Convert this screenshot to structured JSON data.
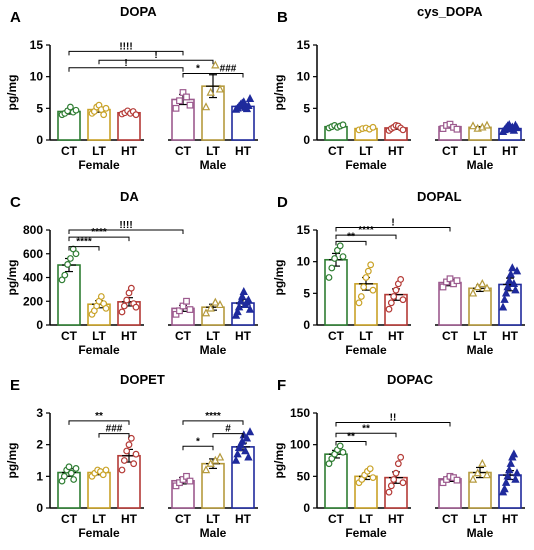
{
  "colors": {
    "CT": "#2e7d32",
    "LT": "#c9a227",
    "HT": "#b43a36",
    "CT_m": "#9c5a8e",
    "LT_m": "#b59a3d",
    "HT_m": "#1f2a9c"
  },
  "chart_data": [
    {
      "type": "bar",
      "letter": "A",
      "title": "DOPA",
      "ylabel": "pg/mg",
      "yticks": [
        "0",
        "5",
        "10",
        "15"
      ],
      "ylim": [
        0,
        15
      ],
      "groups": [
        "Female",
        "Male"
      ],
      "categories": [
        "CT",
        "LT",
        "HT"
      ],
      "means": [
        [
          4.5,
          4.8,
          4.3
        ],
        [
          6.4,
          8.5,
          5.3
        ]
      ],
      "errors": [
        [
          0.4,
          0.4,
          0.2
        ],
        [
          0.8,
          1.8,
          0.3
        ]
      ],
      "points": [
        [
          [
            4.0,
            4.2,
            4.6,
            5.2,
            4.4,
            4.7
          ],
          [
            4.2,
            4.5,
            5.2,
            5.5,
            4.8,
            4.0,
            5.0
          ],
          [
            4.1,
            4.3,
            4.6,
            4.2,
            4.5,
            4.0
          ]
        ],
        [
          [
            5.0,
            6.2,
            7.5,
            6.8,
            5.5
          ],
          [
            5.2,
            7.5,
            11.8,
            8.0
          ],
          [
            4.8,
            5.0,
            5.3,
            5.6,
            5.8,
            6.0,
            5.1,
            4.9,
            5.4,
            6.5
          ]
        ]
      ],
      "sig": [
        {
          "label": "!!!!",
          "from": [
            0,
            0
          ],
          "to": [
            1,
            0
          ],
          "level": 14.0
        },
        {
          "label": "!",
          "from": [
            0,
            0
          ],
          "to": [
            1,
            0
          ],
          "level": 11.4
        },
        {
          "label": "!",
          "from": [
            0,
            1
          ],
          "to": [
            1,
            1
          ],
          "level": 12.6
        },
        {
          "label": "*",
          "from": [
            1,
            0
          ],
          "to": [
            1,
            1
          ],
          "level": 10.5
        },
        {
          "label": "###",
          "from": [
            1,
            1
          ],
          "to": [
            1,
            2
          ],
          "level": 10.5
        }
      ]
    },
    {
      "type": "bar",
      "letter": "B",
      "title": "cys_DOPA",
      "ylabel": "pg/mg",
      "yticks": [
        "0",
        "5",
        "10",
        "15"
      ],
      "ylim": [
        0,
        15
      ],
      "groups": [
        "Female",
        "Male"
      ],
      "categories": [
        "CT",
        "LT",
        "HT"
      ],
      "means": [
        [
          2.1,
          1.8,
          1.9
        ],
        [
          2.1,
          2.0,
          1.8
        ]
      ],
      "errors": [
        [
          0.1,
          0.1,
          0.2
        ],
        [
          0.2,
          0.1,
          0.2
        ]
      ],
      "points": [
        [
          [
            1.9,
            2.1,
            2.3,
            2.0,
            2.2,
            2.4
          ],
          [
            1.6,
            1.8,
            1.9,
            1.7,
            2.0
          ],
          [
            1.5,
            1.8,
            2.0,
            2.3,
            2.2,
            1.9,
            1.6
          ]
        ],
        [
          [
            1.8,
            2.3,
            2.5,
            2.0,
            1.7
          ],
          [
            2.2,
            1.8,
            2.0,
            2.3
          ],
          [
            1.3,
            1.6,
            1.9,
            2.2,
            2.4,
            1.7,
            2.0,
            1.5,
            2.3,
            1.9
          ]
        ]
      ],
      "sig": []
    },
    {
      "type": "bar",
      "letter": "C",
      "title": "DA",
      "ylabel": "pg/mg",
      "yticks": [
        "0",
        "200",
        "400",
        "600",
        "800"
      ],
      "ylim": [
        0,
        800
      ],
      "groups": [
        "Female",
        "Male"
      ],
      "categories": [
        "CT",
        "LT",
        "HT"
      ],
      "means": [
        [
          505,
          175,
          195
        ],
        [
          140,
          150,
          185
        ]
      ],
      "errors": [
        [
          55,
          30,
          35
        ],
        [
          25,
          25,
          30
        ]
      ],
      "points": [
        [
          [
            380,
            420,
            510,
            560,
            640,
            600
          ],
          [
            90,
            120,
            160,
            200,
            240,
            180,
            140
          ],
          [
            110,
            160,
            210,
            270,
            310,
            180,
            150
          ]
        ],
        [
          [
            90,
            120,
            160,
            200,
            130
          ],
          [
            100,
            140,
            190,
            170
          ],
          [
            80,
            110,
            150,
            200,
            240,
            280,
            170,
            190,
            210,
            130
          ]
        ]
      ],
      "sig": [
        {
          "label": "****",
          "from": [
            0,
            0
          ],
          "to": [
            0,
            1
          ],
          "level": 660
        },
        {
          "label": "****",
          "from": [
            0,
            0
          ],
          "to": [
            0,
            2
          ],
          "level": 740
        },
        {
          "label": "!!!!",
          "from": [
            0,
            0
          ],
          "to": [
            1,
            0
          ],
          "level": 800
        }
      ]
    },
    {
      "type": "bar",
      "letter": "D",
      "title": "DOPAL",
      "ylabel": "pg/mg",
      "yticks": [
        "0",
        "5",
        "10",
        "15"
      ],
      "ylim": [
        0,
        15
      ],
      "groups": [
        "Female",
        "Male"
      ],
      "categories": [
        "CT",
        "LT",
        "HT"
      ],
      "means": [
        [
          10.3,
          6.5,
          4.8
        ],
        [
          6.7,
          5.8,
          6.4
        ]
      ],
      "errors": [
        [
          1.0,
          1.0,
          0.9
        ],
        [
          0.5,
          0.5,
          1.0
        ]
      ],
      "points": [
        [
          [
            7.5,
            9.0,
            10.5,
            11.8,
            12.5,
            10.8
          ],
          [
            3.5,
            4.5,
            6.0,
            7.5,
            8.5,
            9.5,
            5.5
          ],
          [
            2.5,
            3.5,
            4.5,
            5.5,
            6.5,
            7.2,
            4.0
          ]
        ],
        [
          [
            6.0,
            6.8,
            7.3,
            6.5,
            7.0
          ],
          [
            5.0,
            6.0,
            6.5,
            5.8
          ],
          [
            2.8,
            4.0,
            5.0,
            6.0,
            7.0,
            8.0,
            9.0,
            6.5,
            5.5,
            8.5
          ]
        ]
      ],
      "sig": [
        {
          "label": "**",
          "from": [
            0,
            0
          ],
          "to": [
            0,
            1
          ],
          "level": 13.2
        },
        {
          "label": "****",
          "from": [
            0,
            0
          ],
          "to": [
            0,
            2
          ],
          "level": 14.2
        },
        {
          "label": "!",
          "from": [
            0,
            0
          ],
          "to": [
            1,
            0
          ],
          "level": 15.4
        }
      ]
    },
    {
      "type": "bar",
      "letter": "E",
      "title": "DOPET",
      "ylabel": "pg/mg",
      "yticks": [
        "0",
        "1",
        "2",
        "3"
      ],
      "ylim": [
        0,
        3
      ],
      "groups": [
        "Female",
        "Male"
      ],
      "categories": [
        "CT",
        "LT",
        "HT"
      ],
      "means": [
        [
          1.12,
          1.12,
          1.65
        ],
        [
          0.86,
          1.4,
          1.93
        ]
      ],
      "errors": [
        [
          0.12,
          0.07,
          0.2
        ],
        [
          0.1,
          0.15,
          0.12
        ]
      ],
      "points": [
        [
          [
            0.85,
            1.0,
            1.2,
            1.3,
            1.1,
            0.9,
            1.25
          ],
          [
            1.0,
            1.1,
            1.2,
            1.15,
            1.05,
            1.2
          ],
          [
            1.2,
            1.5,
            1.8,
            2.0,
            2.2,
            1.4,
            1.7
          ]
        ],
        [
          [
            0.7,
            0.8,
            0.9,
            1.0,
            0.85
          ],
          [
            1.2,
            1.4,
            1.5,
            1.6
          ],
          [
            1.5,
            1.7,
            1.9,
            2.0,
            2.1,
            2.3,
            1.8,
            2.2,
            1.6,
            2.4
          ]
        ]
      ],
      "sig": [
        {
          "label": "**",
          "from": [
            0,
            0
          ],
          "to": [
            0,
            2
          ],
          "level": 2.75
        },
        {
          "label": "###",
          "from": [
            0,
            1
          ],
          "to": [
            0,
            2
          ],
          "level": 2.35
        },
        {
          "label": "****",
          "from": [
            1,
            0
          ],
          "to": [
            1,
            2
          ],
          "level": 2.75
        },
        {
          "label": "*",
          "from": [
            1,
            0
          ],
          "to": [
            1,
            1
          ],
          "level": 1.95
        },
        {
          "label": "#",
          "from": [
            1,
            1
          ],
          "to": [
            1,
            2
          ],
          "level": 2.35
        }
      ]
    },
    {
      "type": "bar",
      "letter": "F",
      "title": "DOPAC",
      "ylabel": "pg/mg",
      "yticks": [
        "0",
        "50",
        "100",
        "150"
      ],
      "ylim": [
        0,
        150
      ],
      "groups": [
        "Female",
        "Male"
      ],
      "categories": [
        "CT",
        "LT",
        "HT"
      ],
      "means": [
        [
          85,
          50,
          48
        ],
        [
          46,
          56,
          52
        ]
      ],
      "errors": [
        [
          6,
          5,
          9
        ],
        [
          4,
          8,
          7
        ]
      ],
      "points": [
        [
          [
            70,
            78,
            85,
            92,
            98,
            88
          ],
          [
            40,
            45,
            52,
            58,
            62,
            48
          ],
          [
            25,
            35,
            45,
            55,
            70,
            80,
            40
          ]
        ],
        [
          [
            40,
            45,
            50,
            48,
            44
          ],
          [
            45,
            55,
            70,
            52
          ],
          [
            25,
            30,
            40,
            50,
            60,
            70,
            80,
            85,
            45,
            55
          ]
        ]
      ],
      "sig": [
        {
          "label": "**",
          "from": [
            0,
            0
          ],
          "to": [
            0,
            1
          ],
          "level": 105
        },
        {
          "label": "**",
          "from": [
            0,
            0
          ],
          "to": [
            0,
            2
          ],
          "level": 118
        },
        {
          "label": "!!",
          "from": [
            0,
            0
          ],
          "to": [
            1,
            0
          ],
          "level": 135
        }
      ]
    }
  ]
}
